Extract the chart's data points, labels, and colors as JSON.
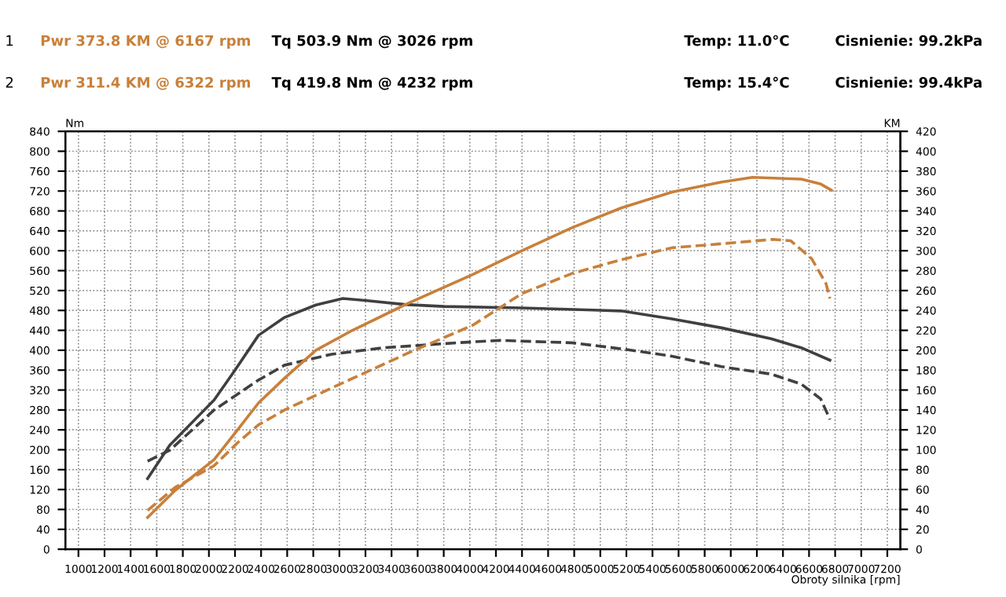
{
  "chart_data": {
    "type": "line",
    "xlabel": "Obroty silnika [rpm]",
    "ylabel": "Nm",
    "y2label": "KM",
    "annotations": [
      "1",
      "Pwr 373.8 KM @ 6167 rpm",
      "Tq 503.9 Nm @ 3026 rpm",
      "Temp: 11.0°C",
      "Cisnienie: 99.2kPa",
      "2",
      "Pwr 311.4 KM @ 6322 rpm",
      "Tq 419.8 Nm @ 4232 rpm",
      "Temp: 15.4°C",
      "Cisnienie: 99.4kPa"
    ],
    "xlim": [
      900,
      7300
    ],
    "xticks": [
      1000,
      1200,
      1400,
      1600,
      1800,
      2000,
      2200,
      2400,
      2600,
      2800,
      3000,
      3200,
      3400,
      3600,
      3800,
      4000,
      4200,
      4400,
      4600,
      4800,
      5000,
      5200,
      5400,
      5600,
      5800,
      6000,
      6200,
      6400,
      6600,
      6800,
      7000,
      7200
    ],
    "ylim": [
      0,
      840
    ],
    "yticks": [
      0,
      40,
      80,
      120,
      160,
      200,
      240,
      280,
      320,
      360,
      400,
      440,
      480,
      520,
      560,
      600,
      640,
      680,
      720,
      760,
      800,
      840
    ],
    "y2lim": [
      0,
      420
    ],
    "y2ticks": [
      0,
      20,
      40,
      60,
      80,
      100,
      120,
      140,
      160,
      180,
      200,
      220,
      240,
      260,
      280,
      300,
      320,
      340,
      360,
      380,
      400,
      420
    ],
    "grid": true,
    "legend": false,
    "marker": "none",
    "series": [
      {
        "color": "#c8803a",
        "axis": "y2",
        "line_style": "solid",
        "x": [
          1530,
          1740,
          2040,
          2220,
          2380,
          2580,
          2820,
          3100,
          3540,
          4020,
          4400,
          4780,
          5160,
          5550,
          5930,
          6167,
          6540,
          6690,
          6770
        ],
        "values": [
          32,
          59,
          90,
          120,
          147,
          172,
          200,
          220,
          248,
          276,
          300,
          323,
          343,
          359,
          369,
          373.8,
          372,
          367,
          361
        ]
      },
      {
        "color": "#c8803a",
        "axis": "y2",
        "line_style": "dashed",
        "x": [
          1530,
          1740,
          2040,
          2220,
          2380,
          2580,
          2940,
          3540,
          4020,
          4400,
          4780,
          5160,
          5550,
          5930,
          6322,
          6460,
          6620,
          6730,
          6760
        ],
        "values": [
          39,
          62,
          84,
          107,
          125,
          140,
          162,
          198,
          225,
          257,
          277,
          291,
          303,
          307,
          311.4,
          310,
          292,
          267,
          252
        ]
      },
      {
        "color": "#404040",
        "axis": "y",
        "line_style": "solid",
        "x": [
          1530,
          1700,
          2040,
          2200,
          2380,
          2580,
          2820,
          3026,
          3200,
          3500,
          3800,
          4400,
          5160,
          5550,
          5930,
          6310,
          6540,
          6760
        ],
        "values": [
          142,
          209,
          300,
          360,
          430,
          466,
          491,
          503.9,
          500,
          492,
          488,
          485,
          479,
          463,
          445,
          423,
          405,
          380
        ]
      },
      {
        "color": "#404040",
        "axis": "y",
        "line_style": "dashed",
        "x": [
          1530,
          1700,
          2040,
          2380,
          2580,
          2940,
          3340,
          3900,
          4232,
          4780,
          5160,
          5550,
          5930,
          6310,
          6540,
          6690,
          6760
        ],
        "values": [
          177,
          199,
          280,
          340,
          370,
          392,
          405,
          415,
          419.8,
          415,
          403,
          388,
          367,
          352,
          332,
          302,
          261
        ]
      }
    ]
  }
}
